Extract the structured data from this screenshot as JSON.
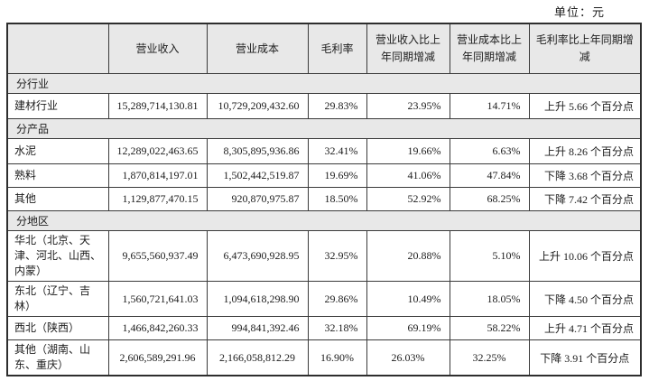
{
  "unit_label": "单位：元",
  "table": {
    "columns": [
      "",
      "营业收入",
      "营业成本",
      "毛利率",
      "营业收入比上年同期增减",
      "营业成本比上年同期增减",
      "毛利率比上年同期增减"
    ],
    "rows": [
      {
        "type": "section",
        "label": "分行业"
      },
      {
        "type": "data",
        "label": "建材行业",
        "revenue": "15,289,714,130.81",
        "cost": "10,729,209,432.60",
        "margin": "29.83%",
        "revenue_yoy": "23.95%",
        "cost_yoy": "14.71%",
        "margin_yoy": "上升 5.66 个百分点"
      },
      {
        "type": "section",
        "label": "分产品"
      },
      {
        "type": "data",
        "label": "水泥",
        "revenue": "12,289,022,463.65",
        "cost": "8,305,895,936.86",
        "margin": "32.41%",
        "revenue_yoy": "19.66%",
        "cost_yoy": "6.63%",
        "margin_yoy": "上升 8.26 个百分点"
      },
      {
        "type": "data",
        "label": "熟料",
        "revenue": "1,870,814,197.01",
        "cost": "1,502,442,519.87",
        "margin": "19.69%",
        "revenue_yoy": "41.06%",
        "cost_yoy": "47.84%",
        "margin_yoy": "下降 3.68 个百分点"
      },
      {
        "type": "data",
        "label": "其他",
        "revenue": "1,129,877,470.15",
        "cost": "920,870,975.87",
        "margin": "18.50%",
        "revenue_yoy": "52.92%",
        "cost_yoy": "68.25%",
        "margin_yoy": "下降 7.42 个百分点"
      },
      {
        "type": "section",
        "label": "分地区"
      },
      {
        "type": "data",
        "label": "华北（北京、天津、河北、山西、内蒙）",
        "revenue": "9,655,560,937.49",
        "cost": "6,473,690,928.95",
        "margin": "32.95%",
        "revenue_yoy": "20.88%",
        "cost_yoy": "5.10%",
        "margin_yoy": "上升 10.06 个百分点"
      },
      {
        "type": "data",
        "label": "东北（辽宁、吉林）",
        "revenue": "1,560,721,641.03",
        "cost": "1,094,618,298.90",
        "margin": "29.86%",
        "revenue_yoy": "10.49%",
        "cost_yoy": "18.05%",
        "margin_yoy": "下降 4.50 个百分点"
      },
      {
        "type": "data",
        "label": "西北（陕西）",
        "revenue": "1,466,842,260.33",
        "cost": "994,841,392.46",
        "margin": "32.18%",
        "revenue_yoy": "69.19%",
        "cost_yoy": "58.22%",
        "margin_yoy": "上升 4.71 个百分点"
      },
      {
        "type": "data",
        "label": "其他（湖南、山东、重庆）",
        "revenue": "2,606,589,291.96",
        "cost": "2,166,058,812.29",
        "margin": "16.90%",
        "revenue_yoy": "26.03%",
        "cost_yoy": "32.25%",
        "margin_yoy": "下降 3.91 个百分点",
        "align": "center"
      }
    ]
  },
  "colors": {
    "header_bg": "#e8e8e8",
    "section_bg": "#e8e8e8",
    "border": "#3a3a3a",
    "text": "#1c1c1c",
    "page_bg": "#ffffff"
  }
}
